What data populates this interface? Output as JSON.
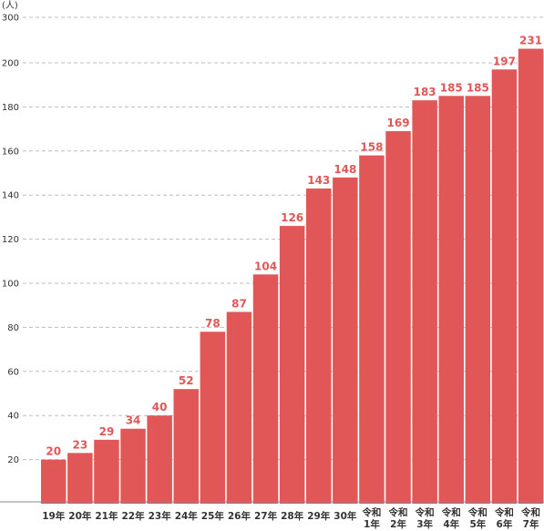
{
  "chart_data": {
    "type": "bar",
    "ylabel": "(人)",
    "ylim": [
      0,
      300
    ],
    "yticks": [
      20,
      40,
      60,
      80,
      100,
      120,
      140,
      160,
      180,
      200,
      300
    ],
    "grid": true,
    "bar_color": "#e15757",
    "label_color": "#e15757",
    "categories": [
      "19年",
      "20年",
      "21年",
      "22年",
      "23年",
      "24年",
      "25年",
      "26年",
      "27年",
      "28年",
      "29年",
      "30年",
      "令和1年",
      "令和2年",
      "令和3年",
      "令和4年",
      "令和5年",
      "令和6年",
      "令和7年"
    ],
    "category_lines": [
      [
        "19年"
      ],
      [
        "20年"
      ],
      [
        "21年"
      ],
      [
        "22年"
      ],
      [
        "23年"
      ],
      [
        "24年"
      ],
      [
        "25年"
      ],
      [
        "26年"
      ],
      [
        "27年"
      ],
      [
        "28年"
      ],
      [
        "29年"
      ],
      [
        "30年"
      ],
      [
        "令和",
        "1年"
      ],
      [
        "令和",
        "2年"
      ],
      [
        "令和",
        "3年"
      ],
      [
        "令和",
        "4年"
      ],
      [
        "令和",
        "5年"
      ],
      [
        "令和",
        "6年"
      ],
      [
        "令和",
        "7年"
      ]
    ],
    "values": [
      20,
      23,
      29,
      34,
      40,
      52,
      78,
      87,
      104,
      126,
      143,
      148,
      158,
      169,
      183,
      185,
      185,
      197,
      231
    ]
  }
}
